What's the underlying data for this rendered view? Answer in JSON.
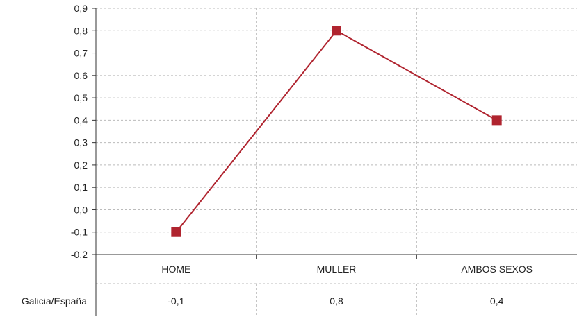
{
  "chart_data": {
    "type": "line",
    "categories": [
      "HOME",
      "MULLER",
      "AMBOS SEXOS"
    ],
    "series": [
      {
        "name": "Galicia/España",
        "values": [
          -0.1,
          0.8,
          0.4
        ]
      }
    ],
    "data_labels": [
      "-0,1",
      "0,8",
      "0,4"
    ],
    "y_ticks": [
      "0,9",
      "0,8",
      "0,7",
      "0,6",
      "0,5",
      "0,4",
      "0,3",
      "0,2",
      "0,1",
      "0,0",
      "-0,1",
      "-0,2"
    ],
    "ylim": [
      -0.2,
      0.9
    ],
    "grid": true,
    "legend": "data-table-below",
    "colors": {
      "series": "#b0242f",
      "grid": "#bbbbbb",
      "axis": "#333333"
    }
  }
}
